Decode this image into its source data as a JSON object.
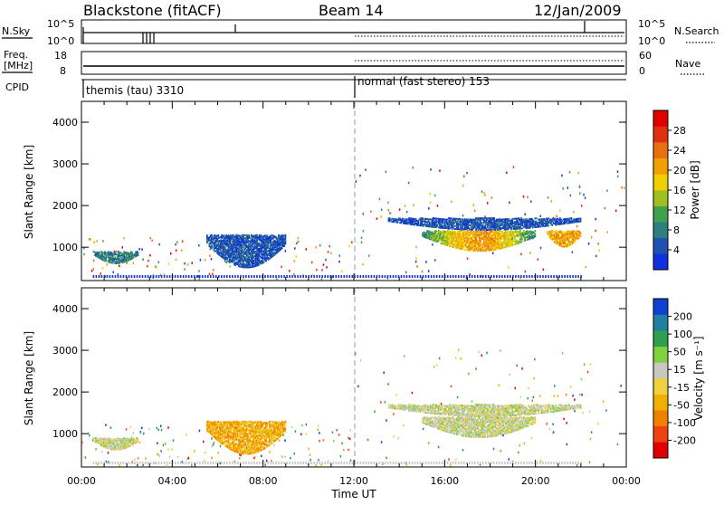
{
  "header": {
    "title": "Blackstone (fitACF)",
    "beam": "Beam 14",
    "date": "12/Jan/2009"
  },
  "top_panels": {
    "nsky_label": "N.Sky",
    "nsearch_label": "N.Search",
    "freq_label_line1": "Freq.",
    "freq_label_line2": "[MHz]",
    "nave_label": "Nave",
    "cpid_label": "CPID",
    "left_ticks_1": [
      "10^5",
      "10^0"
    ],
    "right_ticks_1": [
      "10^5",
      "10^0"
    ],
    "left_ticks_2": [
      "18",
      "8"
    ],
    "right_ticks_2": [
      "60",
      "0"
    ],
    "modes": [
      {
        "label": "themis (tau) 3310",
        "start_hour": 0
      },
      {
        "label": "normal (fast stereo) 153",
        "start_hour": 12
      }
    ]
  },
  "colorbars": {
    "power": {
      "label": "Power [dB]",
      "ticks": [
        "4",
        "8",
        "12",
        "16",
        "20",
        "24",
        "28"
      ],
      "colors": [
        "#1030e0",
        "#2050b0",
        "#2f7f7f",
        "#40a050",
        "#a0c020",
        "#f0d000",
        "#f0a000",
        "#e87010",
        "#e03010",
        "#e00000"
      ]
    },
    "velocity": {
      "label": "Velocity [m s⁻¹]",
      "ticks": [
        "-200",
        "-100",
        "-50",
        "-15",
        "15",
        "50",
        "100",
        "200"
      ],
      "colors": [
        "#e00000",
        "#f04010",
        "#f08000",
        "#f0b000",
        "#f0d040",
        "#c8c8c0",
        "#80d040",
        "#30a050",
        "#2080a0",
        "#1040d0"
      ]
    }
  },
  "chart_data": [
    {
      "type": "heatmap",
      "title": "Power",
      "ylabel": "Slant Range [km]",
      "xlabel": "Time UT",
      "x_ticks": [
        "00:00",
        "04:00",
        "08:00",
        "12:00",
        "16:00",
        "20:00",
        "00:00"
      ],
      "y_ticks": [
        "1000",
        "2000",
        "3000",
        "4000"
      ],
      "xlim_hours": [
        0,
        24
      ],
      "ylim_km": [
        200,
        4500
      ],
      "regions": [
        {
          "t_start": 0.5,
          "t_end": 2.5,
          "r_min": 600,
          "r_max": 900,
          "level": 2
        },
        {
          "t_start": 5.5,
          "t_end": 9.0,
          "r_min": 500,
          "r_max": 1300,
          "level": 1
        },
        {
          "t_start": 13.5,
          "t_end": 22.0,
          "r_min": 1400,
          "r_max": 1700,
          "level": 1
        },
        {
          "t_start": 15.0,
          "t_end": 20.0,
          "r_min": 900,
          "r_max": 1400,
          "level": 5
        },
        {
          "t_start": 20.5,
          "t_end": 22.0,
          "r_min": 1000,
          "r_max": 1400,
          "level": 6
        }
      ]
    },
    {
      "type": "heatmap",
      "title": "Velocity",
      "ylabel": "Slant Range [km]",
      "xlabel": "Time UT",
      "x_ticks": [
        "00:00",
        "04:00",
        "08:00",
        "12:00",
        "16:00",
        "20:00",
        "00:00"
      ],
      "y_ticks": [
        "1000",
        "2000",
        "3000",
        "4000"
      ],
      "xlim_hours": [
        0,
        24
      ],
      "ylim_km": [
        200,
        4500
      ],
      "regions": [
        {
          "t_start": 0.5,
          "t_end": 2.5,
          "r_min": 600,
          "r_max": 900,
          "level": 5
        },
        {
          "t_start": 5.5,
          "t_end": 9.0,
          "r_min": 500,
          "r_max": 1300,
          "level": 3
        },
        {
          "t_start": 13.5,
          "t_end": 22.0,
          "r_min": 1400,
          "r_max": 1700,
          "level": 5
        },
        {
          "t_start": 15.0,
          "t_end": 20.0,
          "r_min": 900,
          "r_max": 1400,
          "level": 5
        }
      ]
    }
  ],
  "x_axis": {
    "label": "Time UT",
    "ticks": [
      "00:00",
      "04:00",
      "08:00",
      "12:00",
      "16:00",
      "20:00",
      "00:00"
    ]
  }
}
